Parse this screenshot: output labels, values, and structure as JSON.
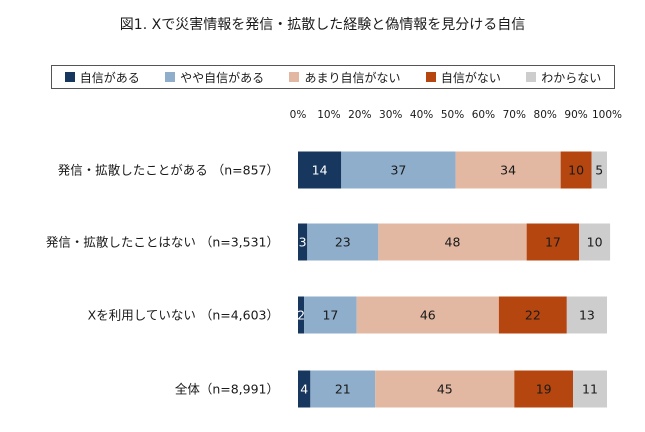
{
  "chart_data": {
    "type": "bar",
    "orientation": "horizontal",
    "stacked": true,
    "title": "図1. Xで災害情報を発信・拡散した経験と偽情報を見分ける自信",
    "categories": [
      "発信・拡散したことがある （n=857）",
      "発信・拡散したことはない （n=3,531）",
      "Xを利用していない （n=4,603）",
      "全体（n=8,991）"
    ],
    "x_ticks": [
      "0%",
      "10%",
      "20%",
      "30%",
      "40%",
      "50%",
      "60%",
      "70%",
      "80%",
      "90%",
      "100%"
    ],
    "xlim": [
      0,
      100
    ],
    "legend_position": "top",
    "series": [
      {
        "name": "自信がある",
        "color": "#17375e",
        "label_color": "#ffffff",
        "values": [
          14,
          3,
          2,
          4
        ]
      },
      {
        "name": "やや自信がある",
        "color": "#8eaecb",
        "label_color": "#1a1a1a",
        "values": [
          37,
          23,
          17,
          21
        ]
      },
      {
        "name": "あまり自信がない",
        "color": "#e2b8a2",
        "label_color": "#1a1a1a",
        "values": [
          34,
          48,
          46,
          45
        ]
      },
      {
        "name": "自信がない",
        "color": "#b5460f",
        "label_color": "#1a1a1a",
        "values": [
          10,
          17,
          22,
          19
        ]
      },
      {
        "name": "わからない",
        "color": "#cdcdcd",
        "label_color": "#1a1a1a",
        "values": [
          5,
          10,
          13,
          11
        ]
      }
    ]
  }
}
